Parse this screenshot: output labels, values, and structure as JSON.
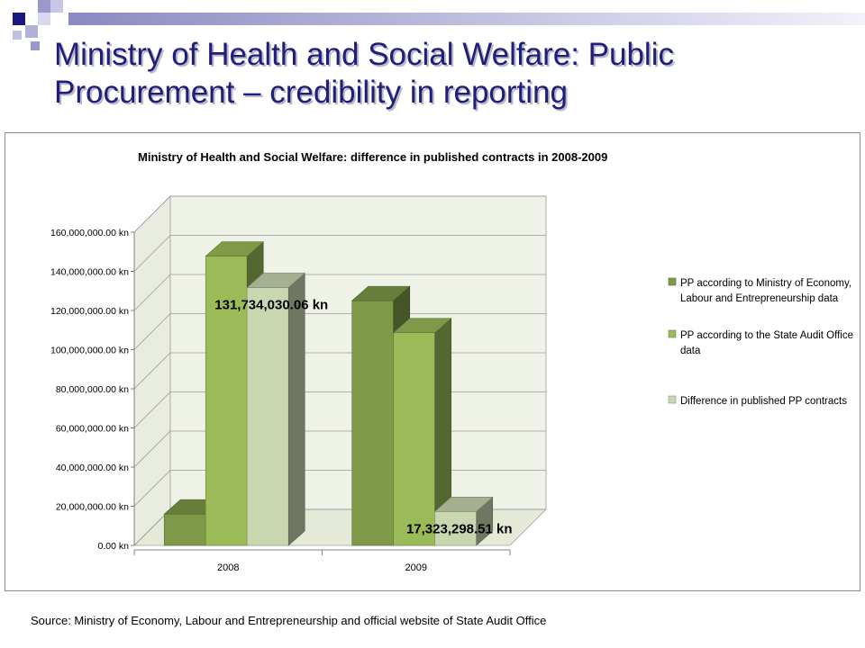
{
  "slide": {
    "title": "Ministry of Health and Social Welfare: Public Procurement – credibility in reporting",
    "source": "Source: Ministry of Economy, Labour and Entrepreneurship and official website of State Audit Office"
  },
  "colors": {
    "title_text": "#1f1f7a",
    "deco_dark": "#1a1a7e",
    "deco_light": "#9999cc",
    "wall": "#eff2e6",
    "series": [
      "#7e9a48",
      "#9bbb59",
      "#c9d7b0"
    ]
  },
  "chart_data": {
    "type": "bar",
    "subtype": "3d-clustered",
    "title": "Ministry of Health and Social Welfare: difference in published contracts in 2008-2009",
    "categories": [
      "2008",
      "2009"
    ],
    "series": [
      {
        "name": "PP according to Ministry of Economy, Labour and Entrepreneurship data",
        "values": [
          16000000,
          125000000
        ]
      },
      {
        "name": "PP according to the State Audit Office data",
        "values": [
          147734030.06,
          108676701.49
        ]
      },
      {
        "name": "Difference in published PP contracts",
        "values": [
          131734030.06,
          17323298.51
        ]
      }
    ],
    "data_labels": [
      {
        "series": 2,
        "category": 0,
        "text": "131,734,030.06 kn"
      },
      {
        "series": 2,
        "category": 1,
        "text": "17,323,298.51 kn"
      }
    ],
    "yticks": [
      "0.00 kn",
      "20,000,000.00 kn",
      "40,000,000.00 kn",
      "60,000,000.00 kn",
      "80,000,000.00 kn",
      "100,000,000.00 kn",
      "120,000,000.00 kn",
      "140,000,000.00 kn",
      "160,000,000.00 kn"
    ],
    "ylim": [
      0,
      160000000
    ],
    "grid": true,
    "legend_position": "right"
  }
}
